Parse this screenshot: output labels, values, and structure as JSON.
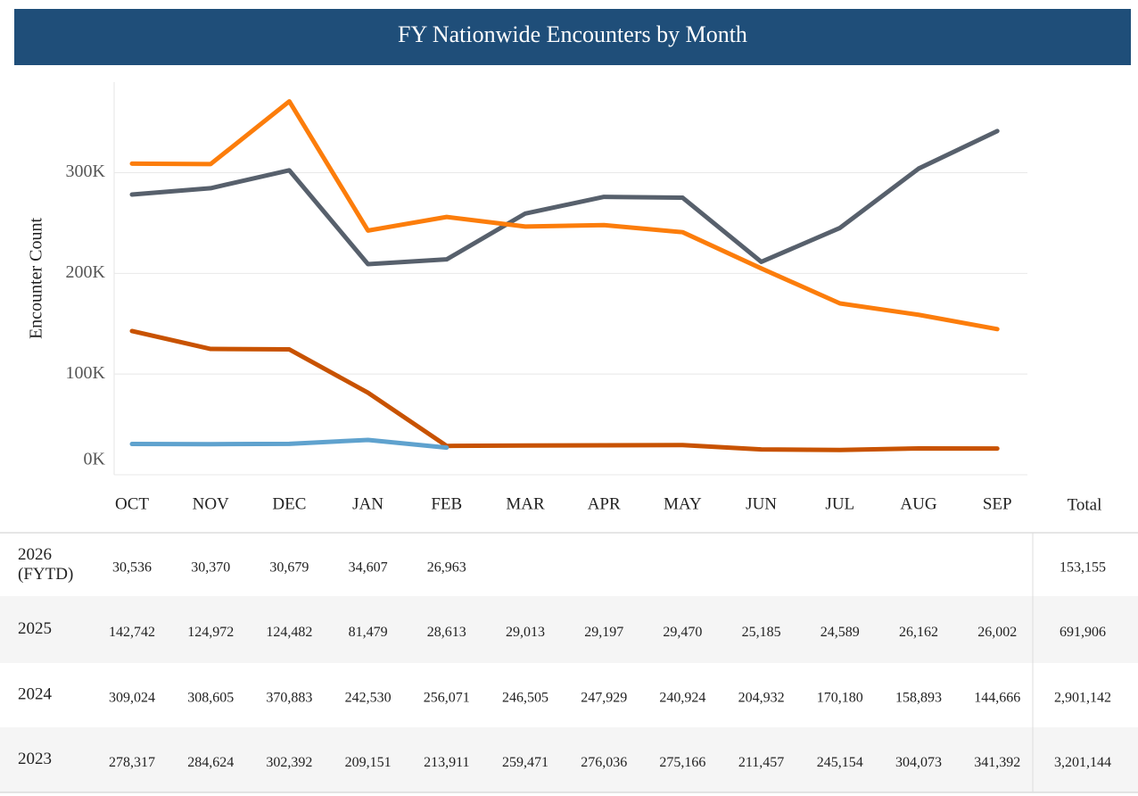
{
  "chart_data": {
    "type": "line",
    "title": "FY Nationwide Encounters by Month",
    "y_label": "Encounter Count",
    "categories": [
      "OCT",
      "NOV",
      "DEC",
      "JAN",
      "FEB",
      "MAR",
      "APR",
      "MAY",
      "JUN",
      "JUL",
      "AUG",
      "SEP"
    ],
    "ylim": [
      0,
      390000
    ],
    "yticks": [
      {
        "value": 0,
        "label": "0K"
      },
      {
        "value": 100000,
        "label": "100K"
      },
      {
        "value": 200000,
        "label": "200K"
      },
      {
        "value": 300000,
        "label": "300K"
      }
    ],
    "grid": true,
    "total_header": "Total",
    "series": [
      {
        "name": "2026 (FYTD)",
        "color": "#5fa2ce",
        "values": [
          30536,
          30370,
          30679,
          34607,
          26963,
          null,
          null,
          null,
          null,
          null,
          null,
          null
        ],
        "value_labels": [
          "30,536",
          "30,370",
          "30,679",
          "34,607",
          "26,963",
          null,
          null,
          null,
          null,
          null,
          null,
          null
        ],
        "total": "153,155"
      },
      {
        "name": "2025",
        "color": "#c85200",
        "values": [
          142742,
          124972,
          124482,
          81479,
          28613,
          29013,
          29197,
          29470,
          25185,
          24589,
          26162,
          26002
        ],
        "value_labels": [
          "142,742",
          "124,972",
          "124,482",
          "81,479",
          "28,613",
          "29,013",
          "29,197",
          "29,470",
          "25,185",
          "24,589",
          "26,162",
          "26,002"
        ],
        "total": "691,906"
      },
      {
        "name": "2024",
        "color": "#fc7d0b",
        "values": [
          309024,
          308605,
          370883,
          242530,
          256071,
          246505,
          247929,
          240924,
          204932,
          170180,
          158893,
          144666
        ],
        "value_labels": [
          "309,024",
          "308,605",
          "370,883",
          "242,530",
          "256,071",
          "246,505",
          "247,929",
          "240,924",
          "204,932",
          "170,180",
          "158,893",
          "144,666"
        ],
        "total": "2,901,142"
      },
      {
        "name": "2023",
        "color": "#57606c",
        "values": [
          278317,
          284624,
          302392,
          209151,
          213911,
          259471,
          276036,
          275166,
          211457,
          245154,
          304073,
          341392
        ],
        "value_labels": [
          "278,317",
          "284,624",
          "302,392",
          "209,151",
          "213,911",
          "259,471",
          "276,036",
          "275,166",
          "211,457",
          "245,154",
          "304,073",
          "341,392"
        ],
        "total": "3,201,144"
      }
    ]
  }
}
